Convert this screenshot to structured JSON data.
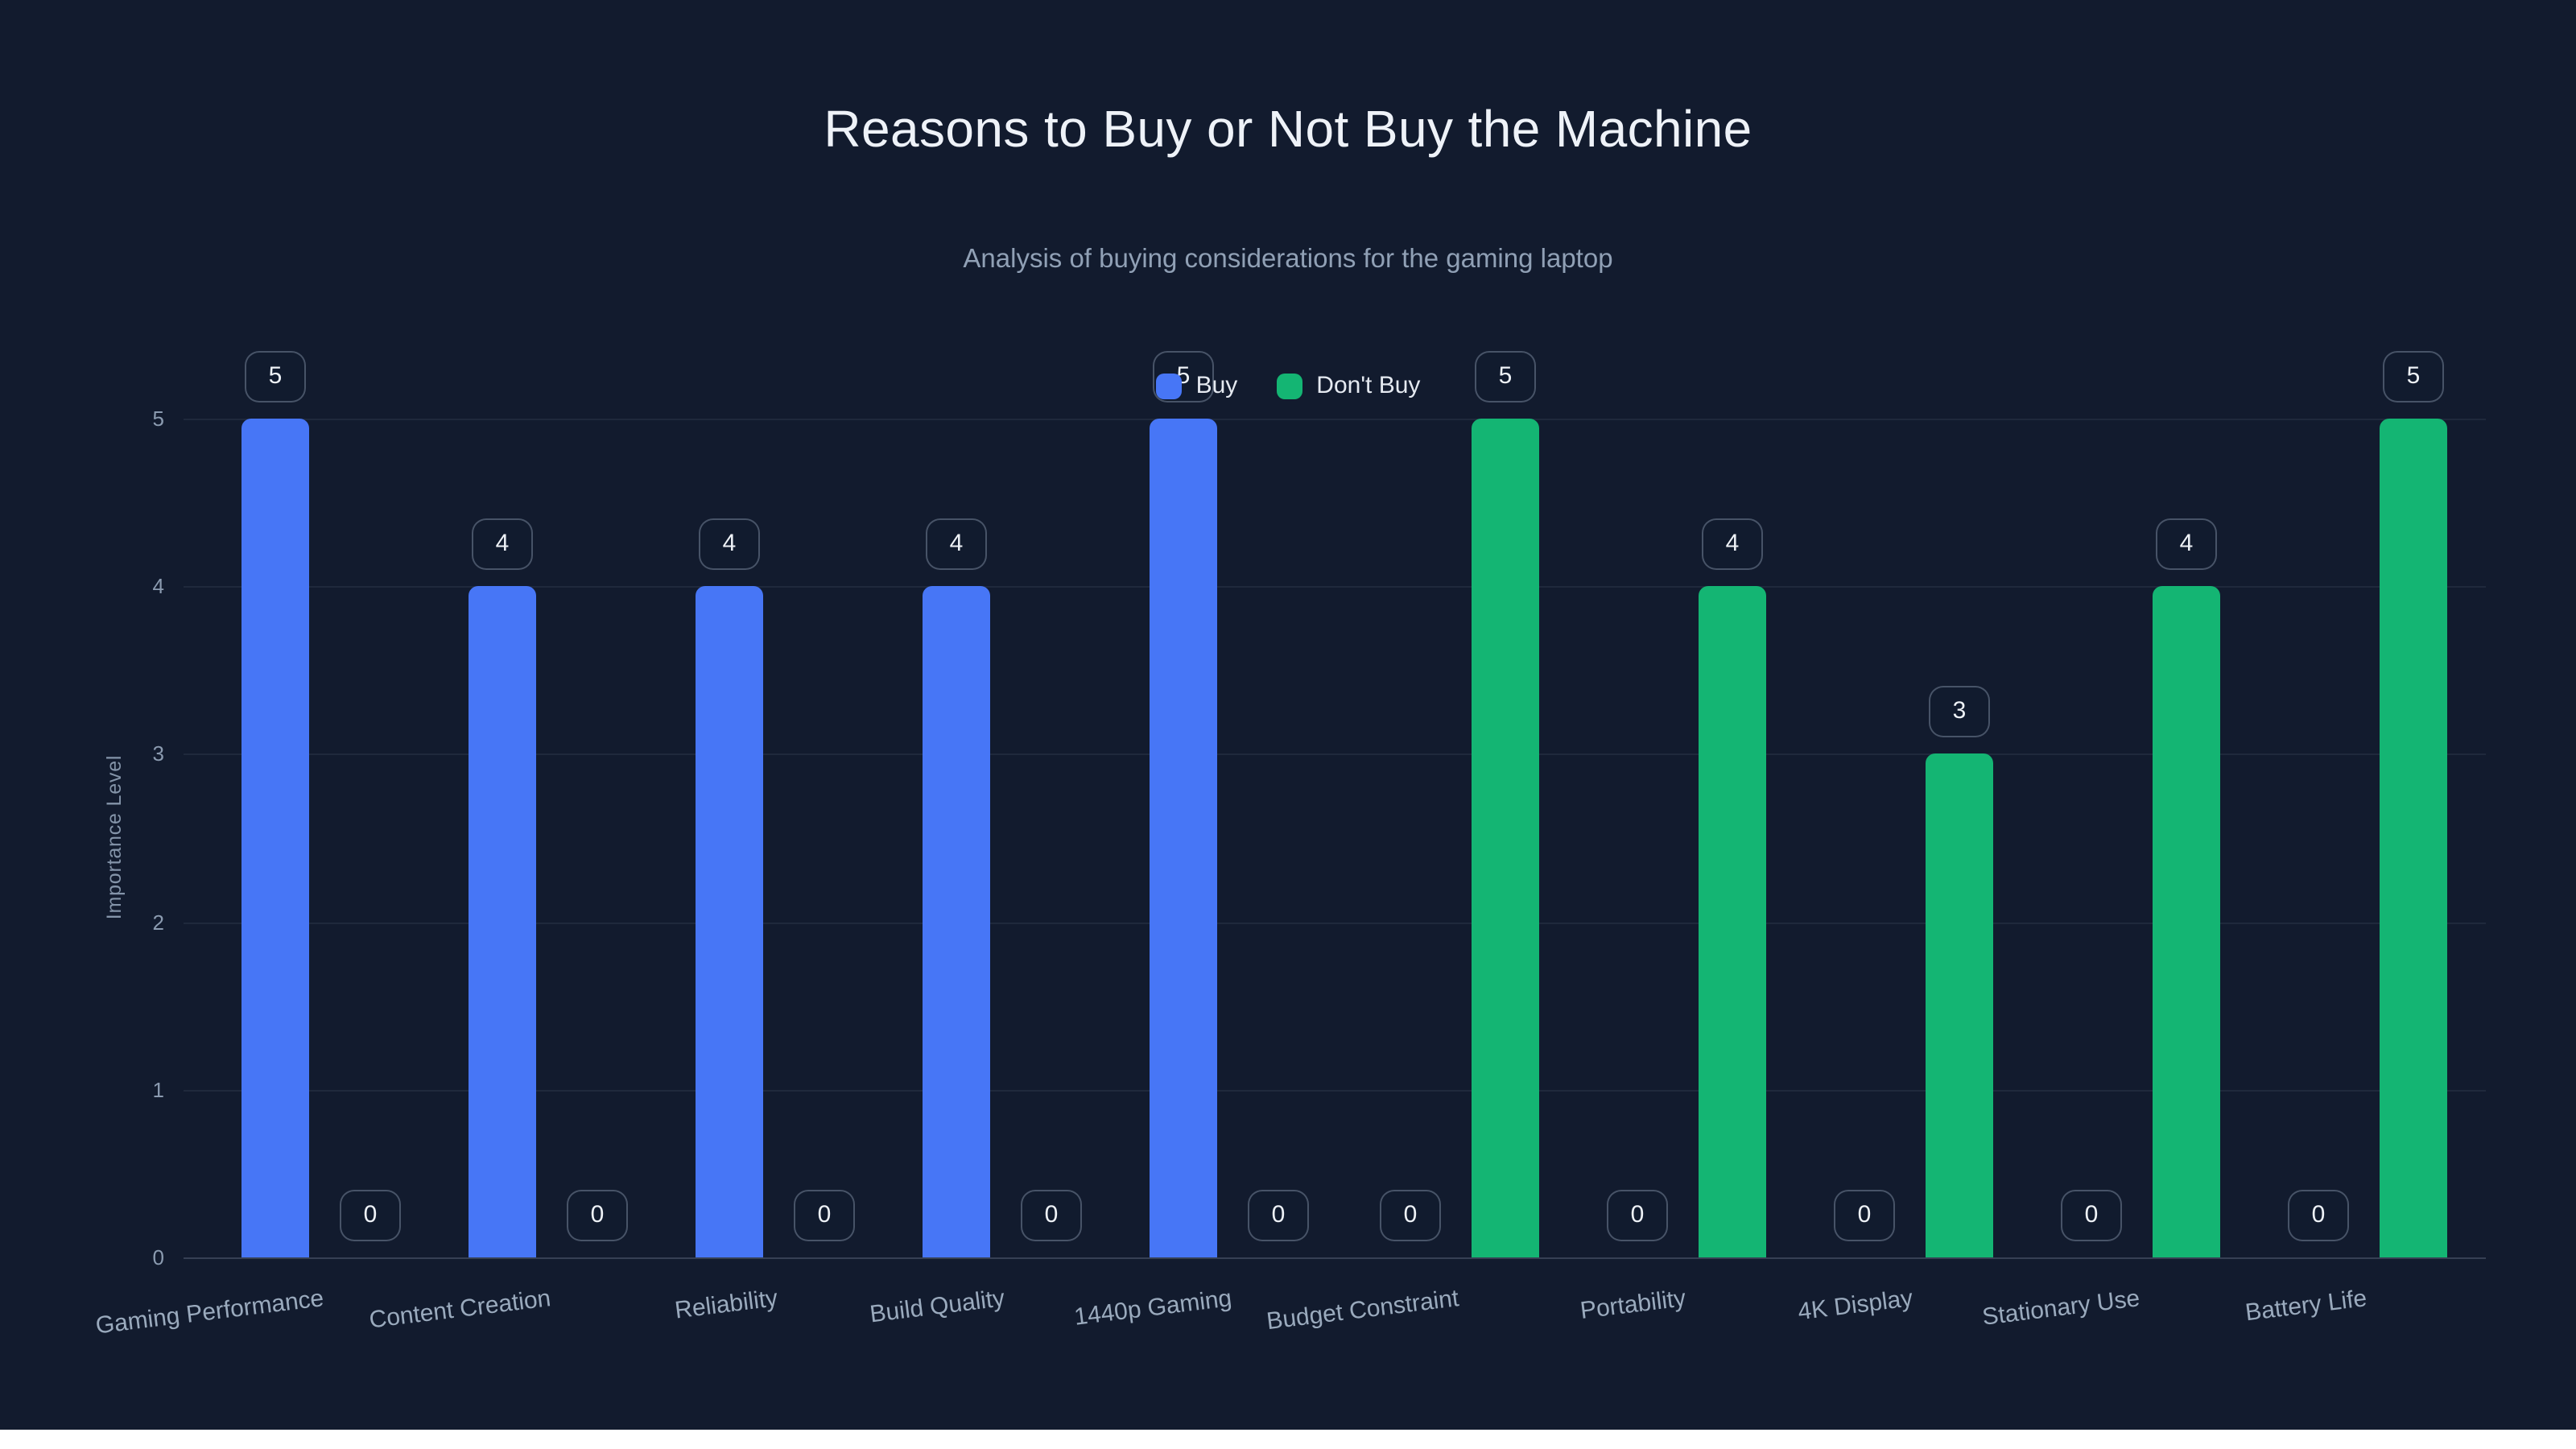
{
  "page": {
    "background": "#121b2e",
    "bottom_strip_color": "#ffffff"
  },
  "colors": {
    "background": "#121b2e",
    "title": "#eef2f8",
    "subtitle": "#90a0b5",
    "axis_text": "#8b9bb0",
    "grid": "rgba(148,163,184,0.10)",
    "badge_border": "rgba(148,163,184,0.42)",
    "buy": "#4776f6",
    "dont_buy": "#14b573"
  },
  "chart_data": {
    "type": "bar",
    "title": "Reasons to Buy or Not Buy the Machine",
    "subtitle": "Analysis of buying considerations for the gaming laptop",
    "xlabel": "",
    "ylabel": "Importance Level",
    "ylim": [
      0,
      5
    ],
    "yticks": [
      0,
      1,
      2,
      3,
      4,
      5
    ],
    "grid": true,
    "legend_position": "top-center",
    "value_labels": true,
    "categories": [
      "Gaming Performance",
      "Content Creation",
      "Reliability",
      "Build Quality",
      "1440p Gaming",
      "Budget Constraint",
      "Portability",
      "4K Display",
      "Stationary Use",
      "Battery Life"
    ],
    "series": [
      {
        "name": "Buy",
        "color": "#4776f6",
        "values": [
          5,
          4,
          4,
          4,
          5,
          0,
          0,
          0,
          0,
          0
        ]
      },
      {
        "name": "Don't Buy",
        "color": "#14b573",
        "values": [
          0,
          0,
          0,
          0,
          0,
          5,
          4,
          3,
          4,
          5
        ]
      }
    ]
  }
}
